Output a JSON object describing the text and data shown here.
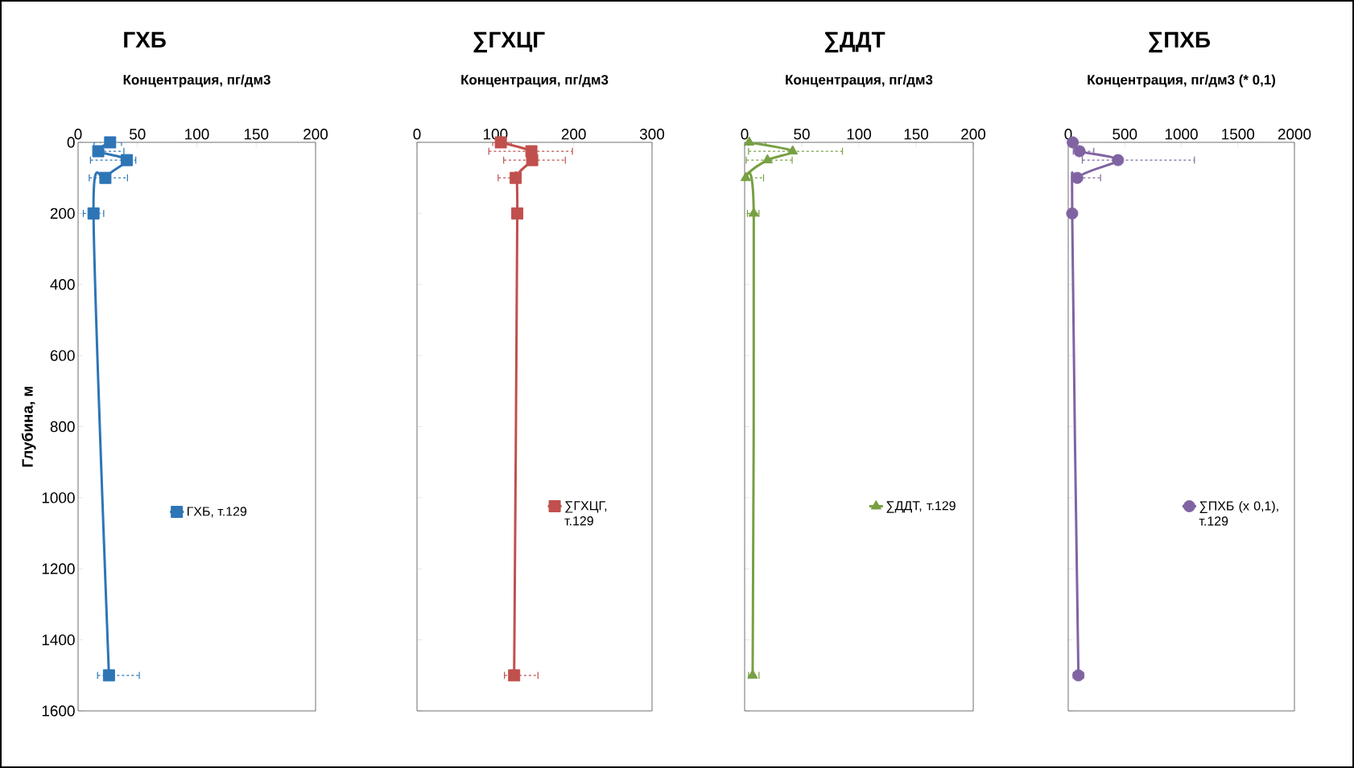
{
  "chart_data": [
    {
      "type": "line",
      "title": "ГХБ",
      "xlabel": "Концентрация, пг/дм3",
      "ylabel": "Глубина, м",
      "xlim": [
        0,
        200
      ],
      "xticks": [
        0,
        50,
        100,
        150,
        200
      ],
      "ylim": [
        1600,
        0
      ],
      "yticks": [
        0,
        200,
        400,
        600,
        800,
        1000,
        1200,
        1400,
        1600
      ],
      "legend": "center",
      "marker": "square",
      "series": [
        {
          "name": "ГХБ, т.129",
          "color": "#2e75b6",
          "x": [
            27,
            17,
            41,
            23,
            13,
            26
          ],
          "values": [
            0,
            25,
            50,
            100,
            200,
            1500
          ],
          "xerrors": [
            [
              13,
              37
            ],
            [
              13,
              39
            ],
            [
              10,
              49
            ],
            [
              9,
              42
            ],
            [
              4,
              22
            ],
            [
              16,
              52
            ]
          ]
        }
      ]
    },
    {
      "type": "line",
      "title": "∑ГХЦГ",
      "xlabel": "Концентрация, пг/дм3",
      "xlim": [
        0,
        300
      ],
      "xticks": [
        0,
        100,
        200,
        300
      ],
      "ylim": [
        1600,
        0
      ],
      "yticks": [
        0,
        200,
        400,
        600,
        800,
        1000,
        1200,
        1400,
        1600
      ],
      "tick_labels": "x",
      "legend": "right",
      "marker": "square",
      "series": [
        {
          "name": "∑ГХЦГ, т.129",
          "color": "#c0504d",
          "x": [
            107,
            146,
            147,
            126,
            128,
            124
          ],
          "values": [
            0,
            25,
            50,
            100,
            200,
            1500
          ],
          "xerrors": [
            [
              96,
              121
            ],
            [
              91,
              199
            ],
            [
              110,
              190
            ],
            [
              103,
              126
            ],
            null,
            [
              111,
              155
            ]
          ]
        }
      ]
    },
    {
      "type": "line",
      "title": "∑ДДТ",
      "xlabel": "Концентрация, пг/дм3",
      "xlim": [
        0,
        200
      ],
      "xticks": [
        0,
        50,
        100,
        150,
        200
      ],
      "ylim": [
        1600,
        0
      ],
      "yticks": [
        0,
        200,
        400,
        600,
        800,
        1000,
        1200,
        1400,
        1600
      ],
      "tick_labels": "x",
      "legend": "right",
      "marker": "triangle",
      "series": [
        {
          "name": "∑ДДТ, т.129",
          "color": "#77a043",
          "x": [
            4,
            42,
            20,
            1,
            8,
            7
          ],
          "values": [
            0,
            25,
            50,
            100,
            200,
            1500
          ],
          "xerrors": [
            [
              3,
              19
            ],
            [
              3,
              86
            ],
            [
              1,
              42
            ],
            [
              0,
              17
            ],
            [
              2,
              13
            ],
            [
              3,
              13
            ]
          ]
        }
      ]
    },
    {
      "type": "line",
      "title": "∑ПХБ",
      "xlabel": "Концентрация, пг/дм3 (* 0,1)",
      "xlim": [
        0,
        2000
      ],
      "xticks": [
        0,
        500,
        1000,
        1500,
        2000
      ],
      "ylim": [
        1600,
        0
      ],
      "yticks": [
        0,
        200,
        400,
        600,
        800,
        1000,
        1200,
        1400,
        1600
      ],
      "tick_labels": "x",
      "legend": "right",
      "marker": "circle",
      "series": [
        {
          "name": "∑ПХБ (х 0,1), т.129",
          "color": "#8064a2",
          "x": [
            40,
            100,
            440,
            80,
            35,
            90
          ],
          "values": [
            0,
            25,
            50,
            100,
            200,
            1500
          ],
          "xerrors": [
            null,
            [
              40,
              230
            ],
            [
              120,
              1120
            ],
            [
              40,
              290
            ],
            null,
            [
              40,
              140
            ]
          ]
        }
      ]
    }
  ]
}
